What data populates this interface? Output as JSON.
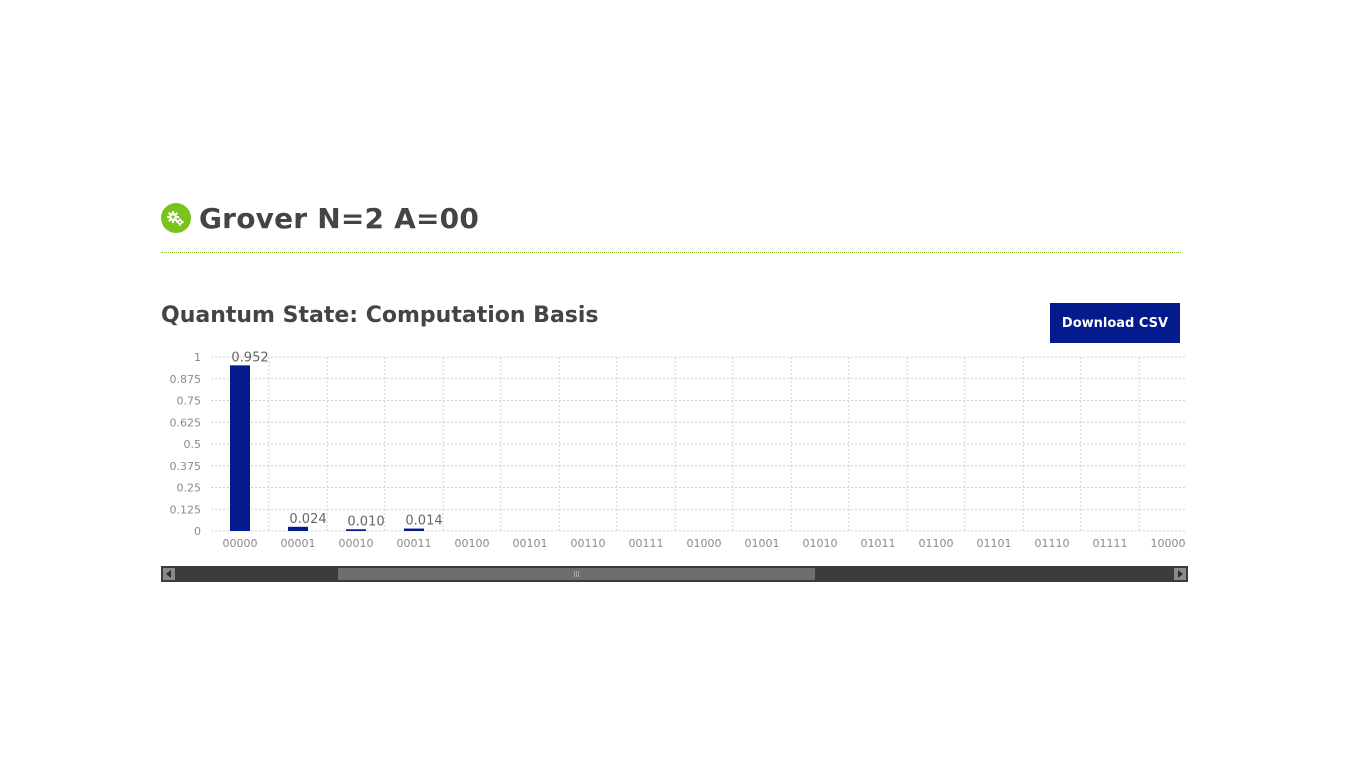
{
  "header": {
    "title": "Grover N=2 A=00",
    "icon": "gears-icon",
    "accent": "#7ac21e"
  },
  "section": {
    "title": "Quantum State: Computation Basis"
  },
  "toolbar": {
    "download_label": "Download CSV",
    "button_color": "#031b8c"
  },
  "chart_data": {
    "type": "bar",
    "title": "",
    "xlabel": "",
    "ylabel": "",
    "ylim": [
      0,
      1
    ],
    "yticks": [
      "0",
      "0.125",
      "0.25",
      "0.375",
      "0.5",
      "0.625",
      "0.75",
      "0.875",
      "1"
    ],
    "grid": true,
    "bar_color": "#031b8c",
    "categories": [
      "00000",
      "00001",
      "00010",
      "00011",
      "00100",
      "00101",
      "00110",
      "00111",
      "01000",
      "01001",
      "01010",
      "01011",
      "01100",
      "01101",
      "01110",
      "01111",
      "10000"
    ],
    "values": [
      0.952,
      0.024,
      0.01,
      0.014,
      0,
      0,
      0,
      0,
      0,
      0,
      0,
      0,
      0,
      0,
      0,
      0,
      0
    ],
    "labels": [
      "0.952",
      "0.024",
      "0.010",
      "0.014",
      "",
      "",
      "",
      "",
      "",
      "",
      "",
      "",
      "",
      "",
      "",
      "",
      ""
    ]
  }
}
